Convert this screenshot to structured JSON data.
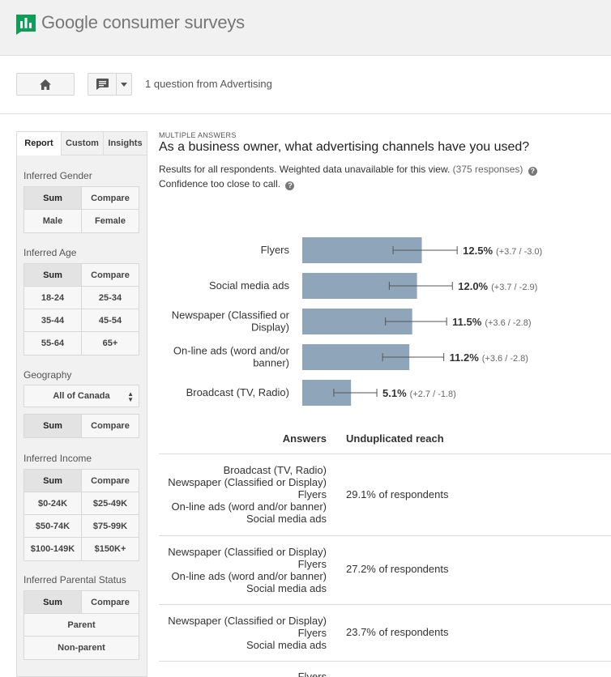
{
  "app": {
    "title": "Google consumer surveys",
    "logo_color": "#0f9d58"
  },
  "toolbar": {
    "home_icon": "home-icon",
    "message_icon": "comment-icon",
    "dropdown_icon": "caret-down-icon",
    "label": "1 question from Advertising"
  },
  "sidebar": {
    "tabs": [
      "Report",
      "Custom",
      "Insights"
    ],
    "active_tab": "Report",
    "gender": {
      "label": "Inferred Gender",
      "cells": [
        "Sum",
        "Compare",
        "Male",
        "Female"
      ]
    },
    "age": {
      "label": "Inferred Age",
      "cells": [
        "Sum",
        "Compare",
        "18-24",
        "25-34",
        "35-44",
        "45-54",
        "55-64",
        "65+"
      ]
    },
    "geography": {
      "label": "Geography",
      "select_value": "All of Canada",
      "cells": [
        "Sum",
        "Compare"
      ]
    },
    "income": {
      "label": "Inferred Income",
      "cells": [
        "Sum",
        "Compare",
        "$0-24K",
        "$25-49K",
        "$50-74K",
        "$75-99K",
        "$100-149K",
        "$150K+"
      ]
    },
    "parental": {
      "label": "Inferred Parental Status",
      "cells": [
        "Sum",
        "Compare",
        "Parent",
        "Non-parent"
      ]
    }
  },
  "question": {
    "type": "MULTIPLE ANSWERS",
    "text": "As a business owner, what advertising channels have you used?",
    "results": "Results for all respondents. Weighted data unavailable for this view.",
    "responses": "(375 responses)",
    "confidence": "Confidence too close to call."
  },
  "chart_data": {
    "type": "bar",
    "orientation": "horizontal",
    "bar_color": "#8fa5b9",
    "categories": [
      "Flyers",
      "Social media ads",
      "Newspaper (Classified or Display)",
      "On-line ads (word and/or banner)",
      "Broadcast (TV, Radio)"
    ],
    "category_lines": [
      [
        "Flyers"
      ],
      [
        "Social media ads"
      ],
      [
        "Newspaper (Classified or",
        "Display)"
      ],
      [
        "On-line ads (word and/or",
        "banner)"
      ],
      [
        "Broadcast (TV, Radio)"
      ]
    ],
    "values": [
      12.5,
      12.0,
      11.5,
      11.2,
      5.1
    ],
    "error_plus": [
      3.7,
      3.7,
      3.6,
      3.6,
      2.7
    ],
    "error_minus": [
      3.0,
      2.9,
      2.8,
      2.8,
      1.8
    ],
    "value_labels": [
      "12.5%",
      "12.0%",
      "11.5%",
      "11.2%",
      "5.1%"
    ],
    "error_labels": [
      "(+3.7 / -3.0)",
      "(+3.7 / -2.9)",
      "(+3.6 / -2.8)",
      "(+3.6 / -2.8)",
      "(+2.7 / -1.8)"
    ]
  },
  "table": {
    "headers": [
      "Answers",
      "Unduplicated reach"
    ],
    "rows": [
      {
        "answers": [
          "Broadcast (TV, Radio)",
          "Newspaper (Classified or Display)",
          "Flyers",
          "On-line ads (word and/or banner)",
          "Social media ads"
        ],
        "reach": "29.1% of respondents"
      },
      {
        "answers": [
          "Newspaper (Classified or Display)",
          "Flyers",
          "On-line ads (word and/or banner)",
          "Social media ads"
        ],
        "reach": "27.2% of respondents"
      },
      {
        "answers": [
          "Newspaper (Classified or Display)",
          "Flyers",
          "Social media ads"
        ],
        "reach": "23.7% of respondents"
      },
      {
        "answers": [
          "Flyers"
        ],
        "reach": ""
      }
    ]
  }
}
